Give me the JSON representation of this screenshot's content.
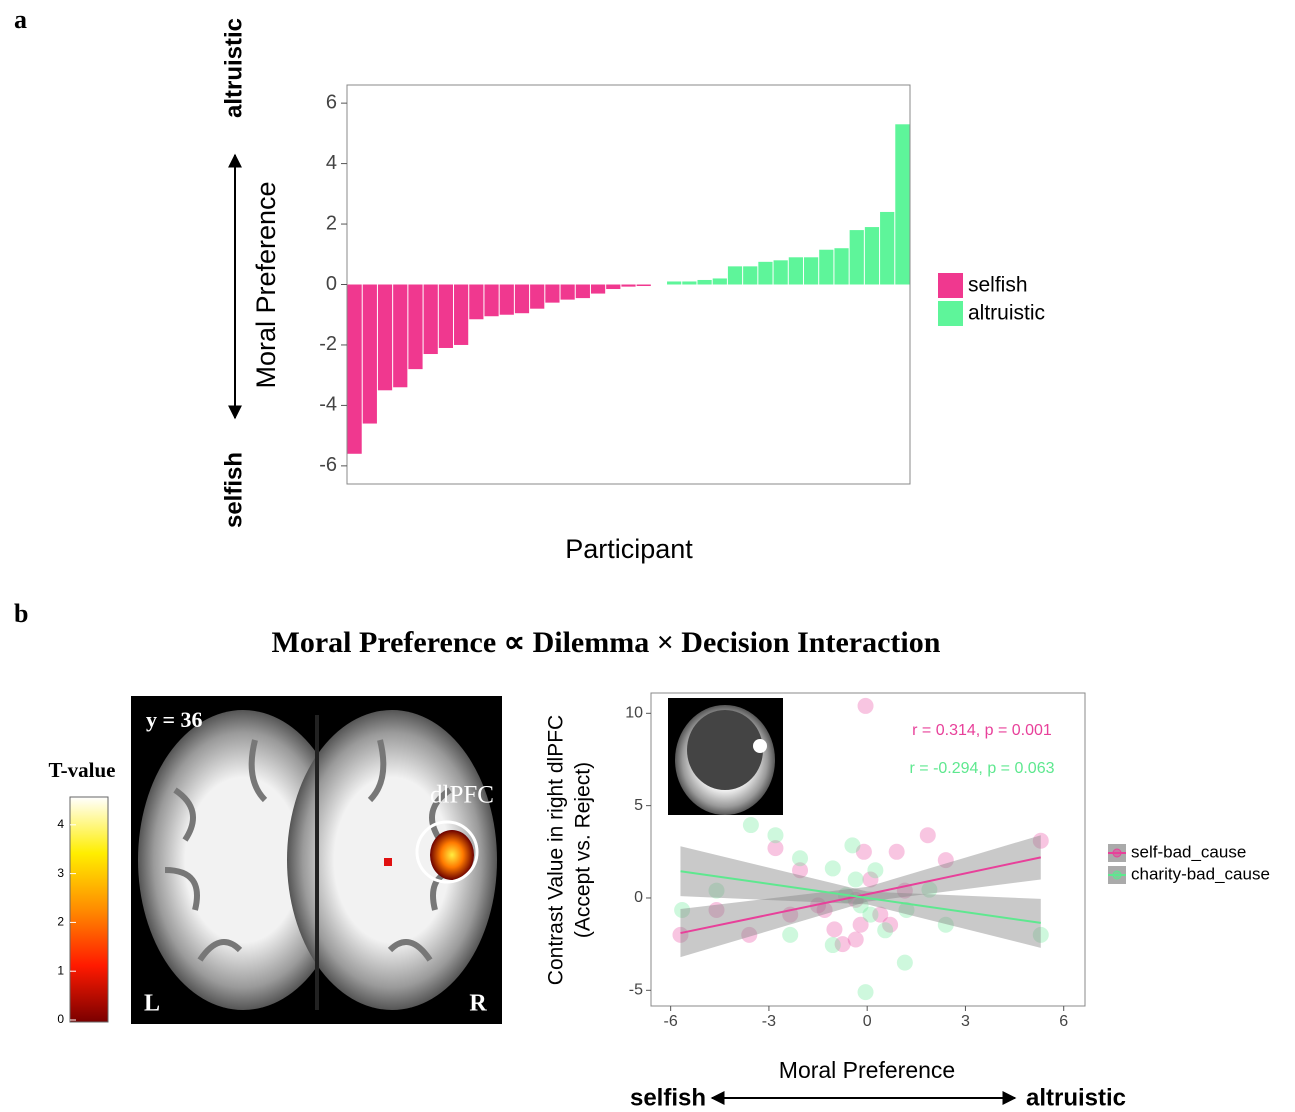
{
  "chart_data": [
    {
      "type": "bar",
      "panel": "a",
      "ylabel": "Moral Preference",
      "xlabel": "Participant",
      "annotations": [
        "altruistic",
        "selfish"
      ],
      "categories": [
        null,
        null,
        null,
        null,
        null,
        null,
        null,
        null,
        null,
        null,
        null,
        null,
        null,
        null,
        null,
        null,
        null,
        null,
        null,
        null,
        null,
        null,
        null,
        null,
        null,
        null,
        null,
        null,
        null,
        null,
        null,
        null,
        null,
        null,
        null,
        null,
        null
      ],
      "series": [
        {
          "name": "selfish",
          "color": "#f0388f",
          "values": [
            -5.6,
            -4.6,
            -3.5,
            -3.4,
            -2.8,
            -2.3,
            -2.1,
            -2.0,
            -1.15,
            -1.05,
            -1.0,
            -0.95,
            -0.8,
            -0.6,
            -0.5,
            -0.45,
            -0.3,
            -0.15,
            -0.07,
            -0.05,
            null,
            null,
            null,
            null,
            null,
            null,
            null,
            null,
            null,
            null,
            null,
            null,
            null,
            null,
            null,
            null,
            null
          ]
        },
        {
          "name": "altruistic",
          "color": "#5ef59a",
          "values": [
            null,
            null,
            null,
            null,
            null,
            null,
            null,
            null,
            null,
            null,
            null,
            null,
            null,
            null,
            null,
            null,
            null,
            null,
            null,
            null,
            null,
            0.1,
            0.1,
            0.15,
            0.2,
            0.6,
            0.6,
            0.75,
            0.8,
            0.9,
            0.9,
            1.15,
            1.2,
            1.8,
            1.9,
            2.4,
            5.3
          ]
        }
      ],
      "ylim": [
        -6.6,
        6.6
      ],
      "yticks": [
        -6,
        -4,
        -2,
        0,
        2,
        4,
        6
      ],
      "grid": false
    },
    {
      "type": "colorbar",
      "title": "T-value",
      "annotations": [
        "y = 36",
        "dlPFC",
        "L",
        "R"
      ],
      "colors": [
        "#7a0000",
        "#ff1a00",
        "#ff8c00",
        "#ffee00",
        "#ffffff"
      ],
      "ylim": [
        0,
        4.57
      ],
      "yticks": [
        0,
        1,
        2,
        3,
        4
      ]
    },
    {
      "type": "scatter",
      "panel": "b",
      "title": "Moral Preference ∝ Dilemma × Decision Interaction",
      "ylabel": [
        "Contrast Value in right dlPFC",
        "(Accept vs. Reject)"
      ],
      "xlabel": "Moral Preference",
      "x_end_labels": [
        "selfish",
        "altruistic"
      ],
      "annotations": [
        "r = 0.314, p = 0.001",
        "r = -0.294, p = 0.063"
      ],
      "series": [
        {
          "name": "self-bad_cause",
          "color": "#e8409a",
          "x": [
            -5.7,
            -4.6,
            -3.6,
            -2.8,
            -2.35,
            -2.05,
            -1.0,
            -0.75,
            -0.35,
            -0.05,
            -0.1,
            0.1,
            0.4,
            0.9,
            1.15,
            1.85,
            2.4,
            5.3,
            -0.2,
            -1.5,
            -0.35,
            0.7,
            -1.3
          ],
          "values": [
            -2.0,
            -0.65,
            -2.0,
            2.7,
            -0.9,
            1.5,
            -1.7,
            -2.5,
            -2.25,
            10.4,
            2.5,
            1.0,
            -0.9,
            2.5,
            0.4,
            3.4,
            2.05,
            3.1,
            -1.45,
            -0.4,
            -0.1,
            -1.45,
            -0.65
          ],
          "fit": {
            "x": [
              -5.7,
              0,
              5.3
            ],
            "y": [
              -1.9,
              0.2,
              2.2
            ],
            "lower": [
              -3.2,
              -0.2,
              1.0
            ],
            "upper": [
              -0.6,
              0.6,
              3.4
            ]
          }
        },
        {
          "name": "charity-bad_cause",
          "color": "#5ee88f",
          "x": [
            -5.65,
            -4.6,
            -3.55,
            -2.8,
            -2.35,
            -2.05,
            -1.05,
            -1.05,
            -0.45,
            -0.35,
            -0.05,
            0.1,
            0.25,
            0.55,
            1.15,
            1.2,
            1.9,
            2.4,
            5.3,
            -0.2,
            -0.65
          ],
          "values": [
            -0.65,
            0.4,
            3.95,
            3.4,
            -2.0,
            2.15,
            1.6,
            -2.55,
            2.85,
            1.0,
            -5.1,
            -0.9,
            1.5,
            -1.75,
            -3.5,
            -0.65,
            0.45,
            -1.45,
            -2.0,
            -0.4,
            0.15
          ],
          "fit": {
            "x": [
              -5.7,
              0,
              5.3
            ],
            "y": [
              1.45,
              0.0,
              -1.35
            ],
            "lower": [
              0.1,
              -0.35,
              -2.7
            ],
            "upper": [
              2.8,
              0.35,
              -0.05
            ]
          }
        }
      ],
      "xlim": [
        -6.6,
        6.65
      ],
      "xticks": [
        -6,
        -3,
        0,
        3,
        6
      ],
      "ylim": [
        -5.85,
        11.1
      ],
      "yticks": [
        -5,
        0,
        5,
        10
      ]
    }
  ]
}
